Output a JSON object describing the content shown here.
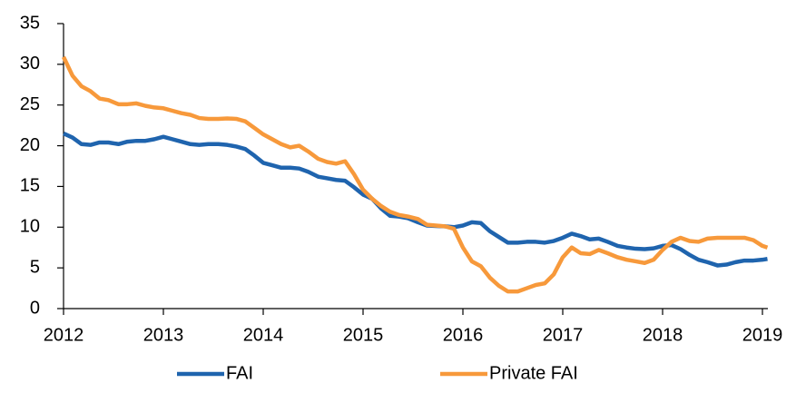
{
  "chart_data": {
    "type": "line",
    "x": [
      2012,
      2012.09,
      2012.18,
      2012.27,
      2012.36,
      2012.45,
      2012.55,
      2012.64,
      2012.73,
      2012.82,
      2012.91,
      2013,
      2013.09,
      2013.18,
      2013.27,
      2013.36,
      2013.45,
      2013.55,
      2013.64,
      2013.73,
      2013.82,
      2013.91,
      2014,
      2014.09,
      2014.18,
      2014.27,
      2014.36,
      2014.45,
      2014.55,
      2014.64,
      2014.73,
      2014.82,
      2014.91,
      2015,
      2015.09,
      2015.18,
      2015.27,
      2015.36,
      2015.45,
      2015.55,
      2015.64,
      2015.73,
      2015.82,
      2015.91,
      2016,
      2016.09,
      2016.18,
      2016.27,
      2016.36,
      2016.45,
      2016.55,
      2016.64,
      2016.73,
      2016.82,
      2016.91,
      2017,
      2017.09,
      2017.18,
      2017.27,
      2017.36,
      2017.45,
      2017.55,
      2017.64,
      2017.73,
      2017.82,
      2017.91,
      2018,
      2018.09,
      2018.18,
      2018.27,
      2018.36,
      2018.45,
      2018.55,
      2018.64,
      2018.73,
      2018.82,
      2018.91,
      2019,
      2019.05
    ],
    "series": [
      {
        "name": "FAI",
        "color": "#1f64ae",
        "values": [
          21.5,
          21.0,
          20.2,
          20.1,
          20.4,
          20.4,
          20.2,
          20.5,
          20.6,
          20.6,
          20.8,
          21.1,
          20.8,
          20.5,
          20.2,
          20.1,
          20.2,
          20.2,
          20.1,
          19.9,
          19.6,
          18.8,
          17.9,
          17.6,
          17.3,
          17.3,
          17.2,
          16.8,
          16.2,
          16.0,
          15.8,
          15.7,
          14.9,
          14.0,
          13.5,
          12.3,
          11.4,
          11.3,
          11.1,
          10.6,
          10.2,
          10.15,
          10.1,
          10.0,
          10.2,
          10.6,
          10.5,
          9.5,
          8.8,
          8.1,
          8.1,
          8.2,
          8.2,
          8.1,
          8.3,
          8.7,
          9.2,
          8.9,
          8.5,
          8.6,
          8.2,
          7.7,
          7.5,
          7.35,
          7.3,
          7.4,
          7.7,
          7.8,
          7.3,
          6.6,
          6.0,
          5.7,
          5.3,
          5.4,
          5.7,
          5.9,
          5.9,
          6.0,
          6.1
        ]
      },
      {
        "name": "Private FAI",
        "color": "#f7993b",
        "values": [
          30.9,
          28.6,
          27.3,
          26.7,
          25.8,
          25.6,
          25.1,
          25.1,
          25.2,
          24.9,
          24.7,
          24.6,
          24.3,
          24.0,
          23.8,
          23.4,
          23.3,
          23.3,
          23.35,
          23.3,
          23.0,
          22.2,
          21.4,
          20.8,
          20.2,
          19.8,
          20.0,
          19.3,
          18.4,
          18.0,
          17.8,
          18.1,
          16.5,
          14.6,
          13.5,
          12.6,
          11.9,
          11.5,
          11.3,
          11.0,
          10.3,
          10.2,
          10.1,
          9.8,
          7.5,
          5.8,
          5.2,
          3.8,
          2.8,
          2.1,
          2.1,
          2.5,
          2.9,
          3.1,
          4.2,
          6.3,
          7.5,
          6.8,
          6.7,
          7.2,
          6.8,
          6.3,
          6.0,
          5.8,
          5.6,
          6.0,
          7.2,
          8.2,
          8.7,
          8.3,
          8.2,
          8.6,
          8.7,
          8.7,
          8.7,
          8.7,
          8.4,
          7.7,
          7.5
        ]
      }
    ],
    "xlim": [
      2012,
      2019.05
    ],
    "xticks": [
      2012,
      2013,
      2014,
      2015,
      2016,
      2017,
      2018,
      2019
    ],
    "ylim": [
      0,
      35
    ],
    "yticks": [
      0,
      5,
      10,
      15,
      20,
      25,
      30,
      35
    ],
    "grid": false,
    "legend": "bottom"
  }
}
